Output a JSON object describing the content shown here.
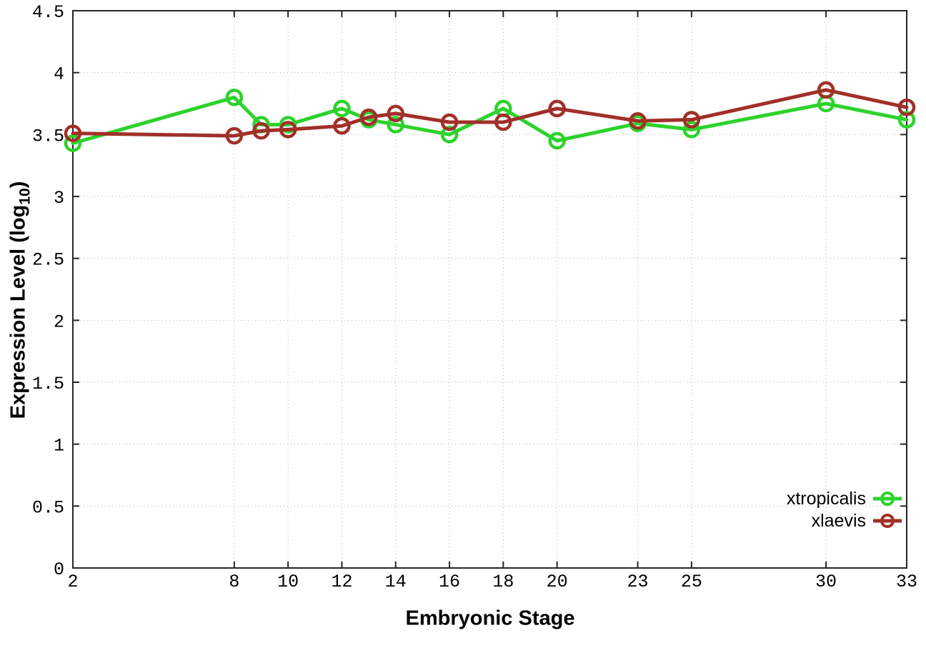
{
  "style": {
    "background": "#ffffff",
    "border_color": "#262626",
    "grid_color": "#b0b0b0",
    "text_color": "#000000"
  },
  "chart_data": {
    "type": "line",
    "title": "",
    "xlabel": "Embryonic Stage",
    "ylabel": "Expression Level (log10)",
    "ylabel_main": "Expression Level (log",
    "ylabel_sub": "10",
    "ylabel_end": ")",
    "xlim": [
      2,
      33
    ],
    "ylim": [
      0,
      4.5
    ],
    "xticks": [
      2,
      8,
      10,
      12,
      14,
      16,
      18,
      20,
      23,
      25,
      30,
      33
    ],
    "yticks": [
      0,
      0.5,
      1,
      1.5,
      2,
      2.5,
      3,
      3.5,
      4,
      4.5
    ],
    "grid": true,
    "legend_position": "bottom-right-inside",
    "x": [
      2,
      8,
      9,
      10,
      12,
      13,
      14,
      16,
      18,
      20,
      23,
      25,
      30,
      33
    ],
    "series": [
      {
        "name": "xtropicalis",
        "color": "#2dd22d",
        "marker": "open-circle",
        "values": [
          3.43,
          3.8,
          3.58,
          3.58,
          3.71,
          3.62,
          3.58,
          3.5,
          3.71,
          3.45,
          3.59,
          3.54,
          3.75,
          3.62
        ]
      },
      {
        "name": "xlaevis",
        "color": "#a03028",
        "marker": "open-circle",
        "values": [
          3.51,
          3.49,
          3.53,
          3.54,
          3.57,
          3.64,
          3.67,
          3.6,
          3.6,
          3.71,
          3.61,
          3.62,
          3.86,
          3.72
        ]
      }
    ]
  }
}
